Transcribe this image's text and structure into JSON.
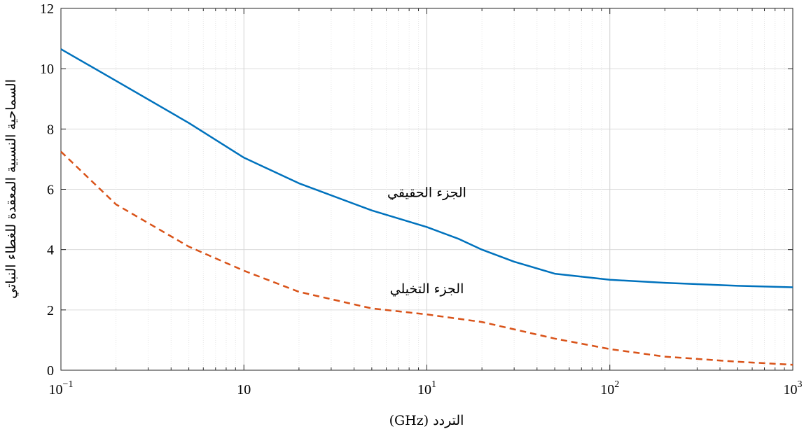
{
  "chart_data": {
    "type": "line",
    "xscale": "log",
    "xlim": [
      0.1,
      1000
    ],
    "ylim": [
      0,
      12
    ],
    "grid": true,
    "xlabel": "التردد (GHz)",
    "ylabel": "السماحية النسبية المعقدة للغطاء النباتي",
    "xtick_labels": [
      {
        "base": "10",
        "exp": "−1"
      },
      {
        "base": "10",
        "exp": ""
      },
      {
        "base": "10",
        "exp": "1"
      },
      {
        "base": "10",
        "exp": "2"
      },
      {
        "base": "10",
        "exp": "3"
      }
    ],
    "ytick_labels": [
      "0",
      "2",
      "4",
      "6",
      "8",
      "10",
      "12"
    ],
    "series": [
      {
        "color": "#0072BD",
        "style": "solid",
        "x": [
          0.1,
          0.2,
          0.5,
          1,
          2,
          5,
          10,
          15,
          20,
          30,
          50,
          100,
          200,
          500,
          1000
        ],
        "y": [
          10.65,
          9.6,
          8.2,
          7.05,
          6.2,
          5.3,
          4.75,
          4.35,
          4.0,
          3.6,
          3.2,
          3.0,
          2.9,
          2.8,
          2.75
        ]
      },
      {
        "color": "#D95319",
        "style": "dashed",
        "x": [
          0.1,
          0.2,
          0.5,
          1,
          2,
          5,
          10,
          20,
          50,
          100,
          200,
          500,
          1000
        ],
        "y": [
          7.25,
          5.5,
          4.1,
          3.3,
          2.6,
          2.05,
          1.85,
          1.6,
          1.05,
          0.7,
          0.45,
          0.28,
          0.18
        ]
      }
    ],
    "annotations": [
      {
        "text": "الجزء الحقيقي",
        "x": 10,
        "y": 5.75
      },
      {
        "text": "الجزء التخيلي",
        "x": 10,
        "y": 2.55
      }
    ]
  }
}
